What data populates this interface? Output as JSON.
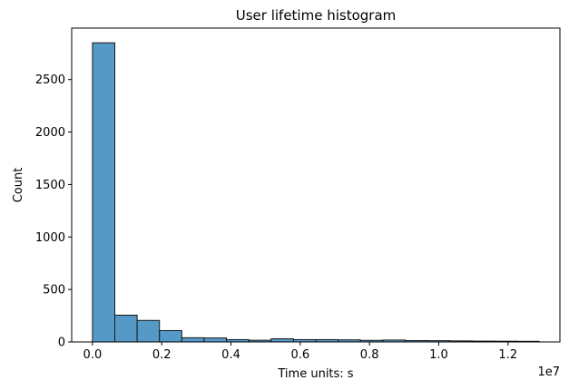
{
  "chart_data": {
    "type": "bar",
    "subtype": "histogram",
    "title": "User lifetime histogram",
    "xlabel": "Time units: s",
    "ylabel": "Count",
    "x_offset_label": "1e7",
    "x_scale": 10000000,
    "xlim": [
      -600000.0,
      13500000.0
    ],
    "ylim": [
      0,
      2990
    ],
    "x_ticks": [
      0,
      2000000,
      4000000,
      6000000,
      8000000,
      10000000,
      12000000
    ],
    "x_tick_labels": [
      "0.0",
      "0.2",
      "0.4",
      "0.6",
      "0.8",
      "1.0",
      "1.2"
    ],
    "y_ticks": [
      0,
      500,
      1000,
      1500,
      2000,
      2500
    ],
    "y_tick_labels": [
      "0",
      "500",
      "1000",
      "1500",
      "2000",
      "2500"
    ],
    "bin_start": 0,
    "bin_width": 645000,
    "values": [
      2850,
      255,
      205,
      108,
      40,
      38,
      22,
      16,
      30,
      22,
      22,
      20,
      15,
      18,
      13,
      12,
      10,
      8,
      7,
      6
    ],
    "bar_color": "#5599c7",
    "edge_color": "#1a1a1a"
  }
}
